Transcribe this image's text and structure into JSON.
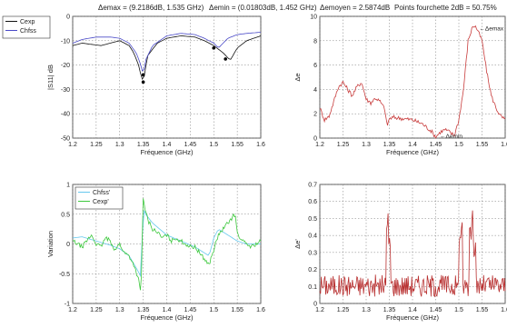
{
  "header": {
    "delta_max": "Δemax = (9.2186dB, 1.535 GHz)",
    "delta_min": "Δemin = (0.01803dB, 1.452 GHz)",
    "delta_mean": "Δemoyen = 2.5874dB",
    "points_fourchette": "Points fourchette 2dB = 50.75%"
  },
  "chart_data": [
    {
      "id": "s11",
      "type": "line",
      "ylabel": "|S11| dB",
      "xlabel": "Fréquence (GHz)",
      "xlim": [
        1.2,
        1.6
      ],
      "ylim": [
        -50,
        0
      ],
      "xticks": [
        "1.2",
        "1.25",
        "1.3",
        "1.35",
        "1.4",
        "1.45",
        "1.5",
        "1.55",
        "1.6"
      ],
      "yticks": [
        "0",
        "-10",
        "-20",
        "-30",
        "-40",
        "-50"
      ],
      "grid": true,
      "legend": "top-left",
      "series": [
        {
          "name": "Cexp",
          "color": "#111111",
          "x": [
            1.2,
            1.22,
            1.24,
            1.26,
            1.28,
            1.3,
            1.32,
            1.33,
            1.34,
            1.345,
            1.35,
            1.355,
            1.36,
            1.38,
            1.4,
            1.43,
            1.46,
            1.48,
            1.5,
            1.51,
            1.52,
            1.53,
            1.535,
            1.55,
            1.57,
            1.6
          ],
          "y": [
            -12,
            -11,
            -11.5,
            -12,
            -11,
            -10,
            -12,
            -15,
            -20,
            -24,
            -27,
            -21,
            -16,
            -11,
            -9,
            -8,
            -8.5,
            -10,
            -12,
            -13.5,
            -15,
            -17,
            -18,
            -13,
            -10,
            -8
          ]
        },
        {
          "name": "Chfss",
          "color": "#4a4ac8",
          "x": [
            1.2,
            1.22,
            1.25,
            1.28,
            1.3,
            1.32,
            1.335,
            1.345,
            1.35,
            1.355,
            1.37,
            1.4,
            1.43,
            1.46,
            1.48,
            1.5,
            1.51,
            1.53,
            1.55,
            1.57,
            1.6
          ],
          "y": [
            -11,
            -9.5,
            -8.5,
            -8.5,
            -9,
            -11,
            -15,
            -20,
            -24,
            -18,
            -12,
            -8,
            -7,
            -7.5,
            -9,
            -11,
            -13,
            -9,
            -7.5,
            -7,
            -6.5
          ]
        }
      ],
      "markers": [
        [
          1.35,
          -27
        ],
        [
          1.35,
          -24
        ],
        [
          1.5,
          -13
        ],
        [
          1.525,
          -17.5
        ]
      ]
    },
    {
      "id": "delta",
      "type": "line",
      "ylabel": "Δe",
      "xlabel": "Fréquence (GHz)",
      "xlim": [
        1.2,
        1.6
      ],
      "ylim": [
        0,
        10
      ],
      "xticks": [
        "1.2",
        "1.25",
        "1.3",
        "1.35",
        "1.4",
        "1.45",
        "1.5",
        "1.55",
        "1.6"
      ],
      "yticks": [
        "10",
        "8",
        "6",
        "4",
        "2",
        "0"
      ],
      "grid": true,
      "annotations": [
        {
          "text": "Δemax",
          "x": 1.54,
          "y": 9.0
        },
        {
          "text": "Δemin",
          "x": 1.455,
          "y": 0.15
        }
      ],
      "series": [
        {
          "name": "",
          "color": "#c83c3c",
          "x": [
            1.2,
            1.21,
            1.22,
            1.23,
            1.24,
            1.25,
            1.26,
            1.27,
            1.28,
            1.29,
            1.3,
            1.31,
            1.32,
            1.33,
            1.34,
            1.345,
            1.35,
            1.36,
            1.38,
            1.4,
            1.42,
            1.44,
            1.45,
            1.46,
            1.47,
            1.48,
            1.49,
            1.5,
            1.51,
            1.52,
            1.53,
            1.535,
            1.54,
            1.55,
            1.56,
            1.57,
            1.58,
            1.59,
            1.6
          ],
          "y": [
            2.5,
            1.5,
            1.8,
            3.0,
            4.2,
            4.6,
            4.0,
            3.5,
            4.2,
            4.6,
            3.2,
            2.9,
            3.3,
            3.0,
            2.4,
            1.0,
            1.6,
            1.7,
            1.6,
            1.5,
            1.2,
            0.6,
            0.1,
            0.5,
            0.7,
            0.5,
            0.2,
            1.5,
            4.0,
            8.0,
            9.2,
            9.2,
            8.9,
            8.0,
            5.5,
            3.5,
            2.5,
            1.8,
            1.5
          ]
        }
      ]
    },
    {
      "id": "variation",
      "type": "line",
      "ylabel": "Variation",
      "xlabel": "Fréquence (GHz)",
      "xlim": [
        1.2,
        1.6
      ],
      "ylim": [
        -1,
        1
      ],
      "xticks": [
        "1.2",
        "1.25",
        "1.3",
        "1.35",
        "1.4",
        "1.45",
        "1.5",
        "1.55",
        "1.6"
      ],
      "yticks": [
        "1",
        "0.5",
        "0",
        "-0.5",
        "-1"
      ],
      "grid": true,
      "legend": "top-left",
      "series": [
        {
          "name": "Chfss'",
          "color": "#66c8ee",
          "x": [
            1.2,
            1.22,
            1.25,
            1.28,
            1.3,
            1.32,
            1.335,
            1.345,
            1.35,
            1.355,
            1.37,
            1.4,
            1.43,
            1.46,
            1.48,
            1.49,
            1.5,
            1.51,
            1.53,
            1.55,
            1.57,
            1.6
          ],
          "y": [
            0.1,
            0.12,
            0.05,
            -0.02,
            -0.08,
            -0.2,
            -0.4,
            -0.55,
            0.6,
            0.5,
            0.35,
            0.15,
            0.05,
            -0.05,
            -0.15,
            -0.2,
            0.1,
            0.25,
            0.15,
            0.05,
            0.0,
            0.0
          ]
        },
        {
          "name": "Cexp'",
          "color": "#3dc83d",
          "x": [
            1.2,
            1.21,
            1.22,
            1.23,
            1.24,
            1.25,
            1.26,
            1.27,
            1.28,
            1.29,
            1.3,
            1.31,
            1.32,
            1.33,
            1.34,
            1.345,
            1.35,
            1.355,
            1.36,
            1.37,
            1.38,
            1.39,
            1.4,
            1.41,
            1.42,
            1.43,
            1.44,
            1.45,
            1.46,
            1.47,
            1.48,
            1.49,
            1.5,
            1.51,
            1.52,
            1.53,
            1.54,
            1.545,
            1.55,
            1.56,
            1.57,
            1.58,
            1.59,
            1.6
          ],
          "y": [
            0.05,
            0.0,
            -0.05,
            0.05,
            0.15,
            0.0,
            -0.05,
            0.1,
            0.05,
            -0.1,
            0.0,
            -0.15,
            -0.2,
            -0.35,
            -0.6,
            -0.85,
            0.75,
            0.55,
            0.4,
            0.25,
            0.2,
            0.1,
            0.15,
            0.05,
            0.1,
            0.05,
            0.0,
            -0.05,
            -0.05,
            -0.15,
            -0.25,
            -0.35,
            -0.1,
            0.15,
            0.25,
            0.35,
            0.45,
            0.5,
            0.2,
            0.05,
            0.0,
            -0.05,
            0.0,
            0.05
          ]
        }
      ]
    },
    {
      "id": "delta_prime",
      "type": "line",
      "ylabel": "Δe'",
      "xlabel": "Fréquence (GHz)",
      "xlim": [
        1.2,
        1.6
      ],
      "ylim": [
        0,
        0.7
      ],
      "xticks": [
        "1.2",
        "1.25",
        "1.3",
        "1.35",
        "1.4",
        "1.45",
        "1.5",
        "1.55",
        "1.6"
      ],
      "yticks": [
        "0.7",
        "0.6",
        "0.5",
        "0.4",
        "0.3",
        "0.2",
        "0.1",
        "0"
      ],
      "grid": true,
      "series": [
        {
          "name": "",
          "color": "#b83030",
          "noise_base": 0.1,
          "peaks": [
            [
              1.345,
              0.56
            ],
            [
              1.35,
              0.4
            ],
            [
              1.502,
              0.42
            ],
            [
              1.505,
              0.5
            ],
            [
              1.525,
              0.52
            ],
            [
              1.53,
              0.55
            ],
            [
              1.535,
              0.38
            ]
          ]
        }
      ]
    }
  ]
}
